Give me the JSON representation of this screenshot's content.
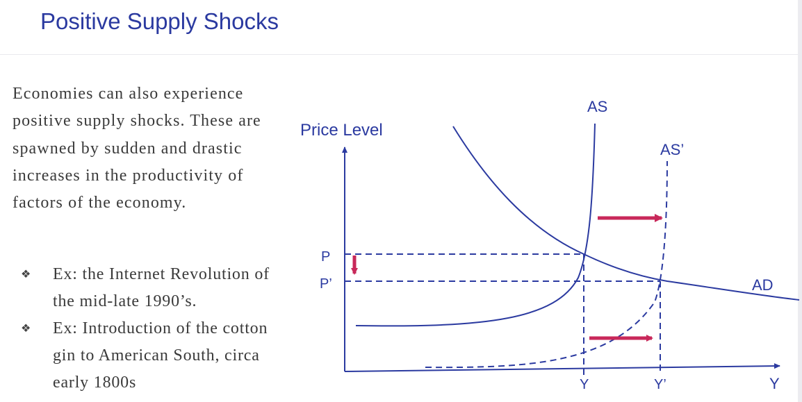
{
  "title": "Positive Supply Shocks",
  "body": "Economies can also experience positive supply shocks. These are spawned by sudden and drastic increases in the productivity of factors of the economy.",
  "bullets": [
    {
      "icon": "diamond-bullet-icon",
      "text": "Ex: the Internet Revolution of the mid-late 1990’s."
    },
    {
      "icon": "diamond-bullet-icon",
      "text": "Ex: Introduction of the cotton gin to American South, circa early 1800s"
    }
  ],
  "diagram": {
    "y_axis_label": "Price Level",
    "x_axis_label": "Y",
    "curves": {
      "as": "AS",
      "as_shifted": "AS’",
      "ad": "AD"
    },
    "price_labels": {
      "p": "P",
      "p_new": "P’"
    },
    "output_labels": {
      "y": "Y",
      "y_new": "Y’"
    },
    "colors": {
      "curve": "#2b3aa0",
      "arrow": "#c8285a",
      "title": "#2b3aa0"
    }
  }
}
